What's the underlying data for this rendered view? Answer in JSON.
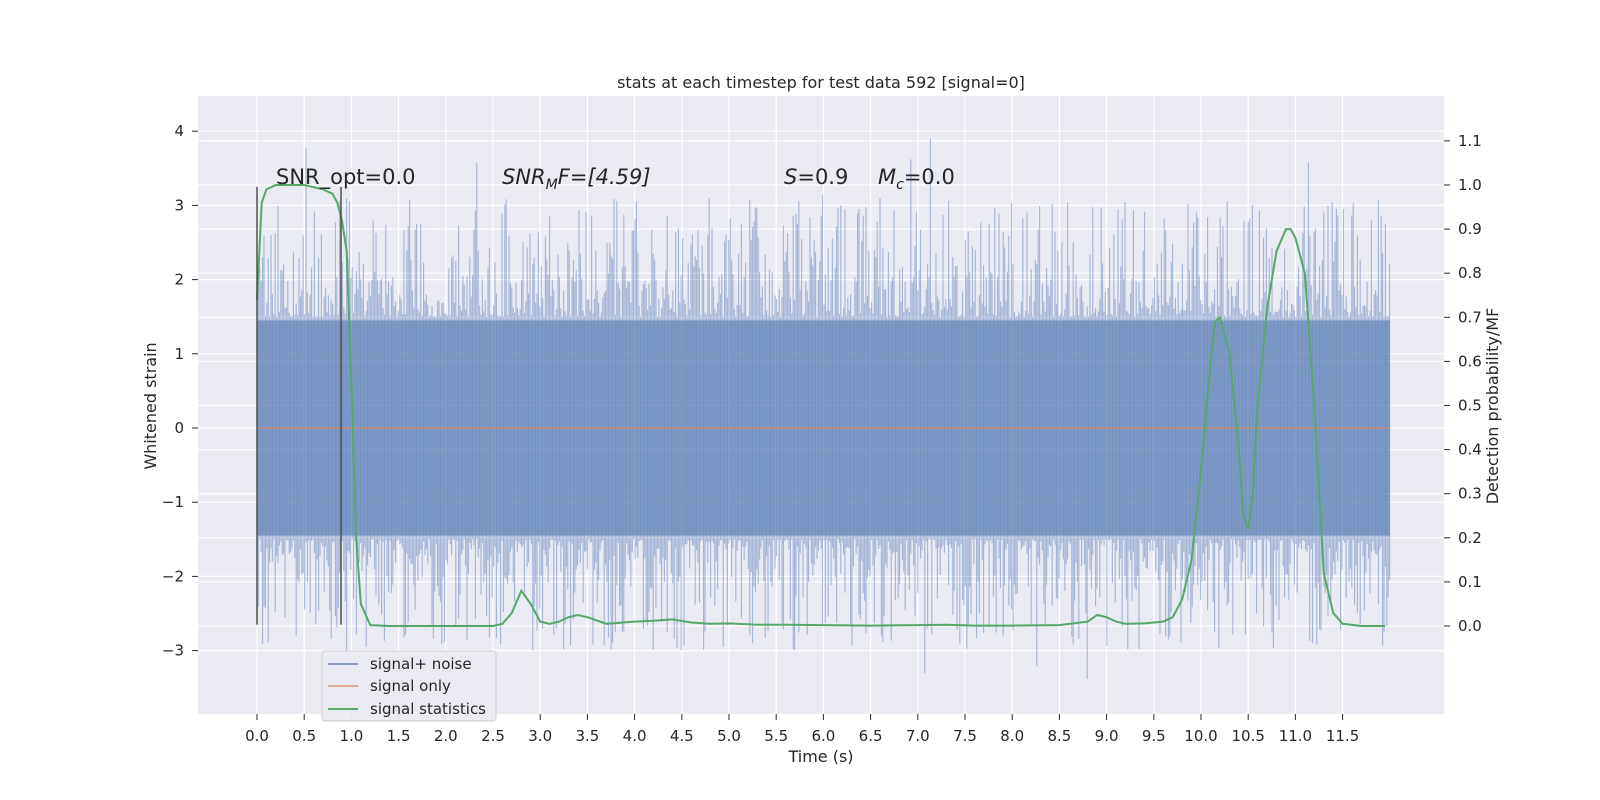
{
  "chart_data": {
    "type": "line",
    "title": "stats at each timestep for test data 592 [signal=0]",
    "xlabel": "Time (s)",
    "ylabel_left": "Whitened strain",
    "ylabel_right": "Detection probability/MF",
    "xlim": [
      -0.5,
      12.5
    ],
    "ylim_left": [
      -3.9,
      4.45
    ],
    "ylim_right": [
      -0.2,
      1.2
    ],
    "x_ticks": [
      "0.0",
      "0.5",
      "1.0",
      "1.5",
      "2.0",
      "2.5",
      "3.0",
      "3.5",
      "4.0",
      "4.5",
      "5.0",
      "5.5",
      "6.0",
      "6.5",
      "7.0",
      "7.5",
      "8.0",
      "8.5",
      "9.0",
      "9.5",
      "10.0",
      "10.5",
      "11.0",
      "11.5"
    ],
    "y_left_ticks": [
      "4",
      "3",
      "2",
      "1",
      "0",
      "−1",
      "−2",
      "−3"
    ],
    "y_right_ticks": [
      "1.1",
      "1.0",
      "0.9",
      "0.8",
      "0.7",
      "0.6",
      "0.5",
      "0.4",
      "0.3",
      "0.2",
      "0.1",
      "0.0"
    ],
    "grid": true,
    "legend_position": "lower-left",
    "annotations": {
      "snr_opt": "SNR_opt=0.0",
      "snr_mf_main": "SNR",
      "snr_mf_sub": "M",
      "snr_mf_rest": "F=[4.59]",
      "s_var": "S",
      "s_rest": "=0.9",
      "mc_var": "M",
      "mc_sub": "c",
      "mc_rest": "=0.0"
    },
    "markers_x": [
      0.0,
      0.89
    ],
    "series": [
      {
        "name": "signal+ noise",
        "color": "#4c72b0",
        "description_range": [
          -3.5,
          4.1
        ],
        "x_range": [
          0.0,
          12.0
        ],
        "envelope_p": 1.45,
        "envelope_n": -1.45
      },
      {
        "name": "signal only",
        "color": "#dd8452",
        "x": [
          0.0,
          12.0
        ],
        "y": [
          0.0,
          0.0
        ]
      },
      {
        "name": "signal statistics",
        "color": "#55a868",
        "axis": "right",
        "x": [
          0.0,
          0.05,
          0.1,
          0.2,
          0.3,
          0.4,
          0.5,
          0.6,
          0.7,
          0.8,
          0.85,
          0.9,
          0.95,
          1.0,
          1.05,
          1.1,
          1.2,
          1.4,
          1.7,
          2.0,
          2.3,
          2.5,
          2.6,
          2.7,
          2.8,
          2.9,
          3.0,
          3.1,
          3.2,
          3.3,
          3.4,
          3.5,
          3.7,
          4.0,
          4.2,
          4.4,
          4.6,
          4.8,
          5.0,
          5.3,
          5.6,
          6.0,
          6.5,
          7.0,
          7.3,
          7.6,
          8.0,
          8.5,
          8.8,
          8.9,
          9.0,
          9.1,
          9.2,
          9.4,
          9.6,
          9.7,
          9.8,
          9.9,
          10.0,
          10.1,
          10.15,
          10.2,
          10.3,
          10.4,
          10.45,
          10.5,
          10.55,
          10.6,
          10.7,
          10.8,
          10.9,
          10.95,
          11.0,
          11.1,
          11.2,
          11.3,
          11.4,
          11.5,
          11.7,
          11.95
        ],
        "y": [
          0.74,
          0.96,
          0.99,
          1.0,
          1.0,
          1.0,
          1.0,
          0.995,
          0.99,
          0.98,
          0.96,
          0.92,
          0.85,
          0.55,
          0.2,
          0.05,
          0.002,
          0.0,
          0.0,
          0.0,
          0.0,
          0.0,
          0.005,
          0.03,
          0.08,
          0.05,
          0.01,
          0.005,
          0.01,
          0.02,
          0.025,
          0.02,
          0.005,
          0.01,
          0.012,
          0.015,
          0.008,
          0.005,
          0.006,
          0.003,
          0.003,
          0.002,
          0.001,
          0.002,
          0.003,
          0.001,
          0.001,
          0.002,
          0.01,
          0.025,
          0.02,
          0.01,
          0.005,
          0.006,
          0.01,
          0.02,
          0.06,
          0.15,
          0.35,
          0.6,
          0.69,
          0.7,
          0.62,
          0.4,
          0.25,
          0.22,
          0.3,
          0.5,
          0.72,
          0.85,
          0.9,
          0.9,
          0.88,
          0.8,
          0.5,
          0.12,
          0.03,
          0.005,
          0.0,
          0.0
        ]
      }
    ]
  }
}
